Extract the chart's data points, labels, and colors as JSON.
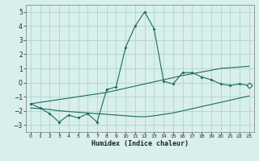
{
  "x": [
    0,
    1,
    2,
    3,
    4,
    5,
    6,
    7,
    8,
    9,
    10,
    11,
    12,
    13,
    14,
    15,
    16,
    17,
    18,
    19,
    20,
    21,
    22,
    23
  ],
  "y_main": [
    -1.5,
    -1.8,
    -2.2,
    -2.8,
    -2.3,
    -2.5,
    -2.2,
    -2.8,
    -0.5,
    -0.3,
    2.5,
    4.0,
    5.0,
    3.8,
    0.1,
    -0.1,
    0.7,
    0.7,
    0.4,
    0.2,
    -0.1,
    -0.2,
    -0.1,
    -0.2
  ],
  "y_upper": [
    -1.5,
    -1.4,
    -1.3,
    -1.2,
    -1.1,
    -1.0,
    -0.9,
    -0.8,
    -0.7,
    -0.55,
    -0.4,
    -0.25,
    -0.1,
    0.05,
    0.2,
    0.35,
    0.5,
    0.62,
    0.75,
    0.87,
    1.0,
    1.05,
    1.1,
    1.15
  ],
  "y_lower": [
    -1.8,
    -1.85,
    -1.9,
    -2.0,
    -2.05,
    -2.1,
    -2.15,
    -2.2,
    -2.25,
    -2.3,
    -2.35,
    -2.4,
    -2.42,
    -2.35,
    -2.25,
    -2.15,
    -2.0,
    -1.85,
    -1.7,
    -1.55,
    -1.4,
    -1.25,
    -1.1,
    -0.95
  ],
  "bg_color": "#d8efec",
  "line_color": "#1a6b5e",
  "grid_color": "#b0d4d0",
  "xlabel": "Humidex (Indice chaleur)",
  "ylim": [
    -3.5,
    5.5
  ],
  "xlim": [
    -0.5,
    23.5
  ],
  "yticks": [
    -3,
    -2,
    -1,
    0,
    1,
    2,
    3,
    4,
    5
  ],
  "xticks": [
    0,
    1,
    2,
    3,
    4,
    5,
    6,
    7,
    8,
    9,
    10,
    11,
    12,
    13,
    14,
    15,
    16,
    17,
    18,
    19,
    20,
    21,
    22,
    23
  ]
}
